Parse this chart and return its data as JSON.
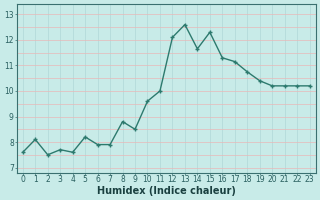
{
  "x": [
    0,
    1,
    2,
    3,
    4,
    5,
    6,
    7,
    8,
    9,
    10,
    11,
    12,
    13,
    14,
    15,
    16,
    17,
    18,
    19,
    20,
    21,
    22,
    23
  ],
  "y": [
    7.6,
    8.1,
    7.5,
    7.7,
    7.6,
    8.2,
    7.9,
    7.9,
    8.8,
    8.5,
    9.6,
    10.0,
    12.1,
    12.6,
    11.65,
    12.3,
    11.3,
    11.15,
    10.75,
    10.4,
    10.2,
    10.2,
    10.2,
    10.2
  ],
  "line_color": "#2d7a6e",
  "marker": "+",
  "marker_size": 3.5,
  "line_width": 1.0,
  "bg_color": "#c8ebe8",
  "grid_color": "#e8c8c8",
  "grid_color2": "#c8e8e8",
  "xlabel": "Humidex (Indice chaleur)",
  "xlabel_fontsize": 7,
  "ylabel_ticks": [
    7,
    8,
    9,
    10,
    11,
    12,
    13
  ],
  "xlim": [
    -0.5,
    23.5
  ],
  "ylim": [
    6.8,
    13.4
  ],
  "tick_fontsize": 5.5
}
